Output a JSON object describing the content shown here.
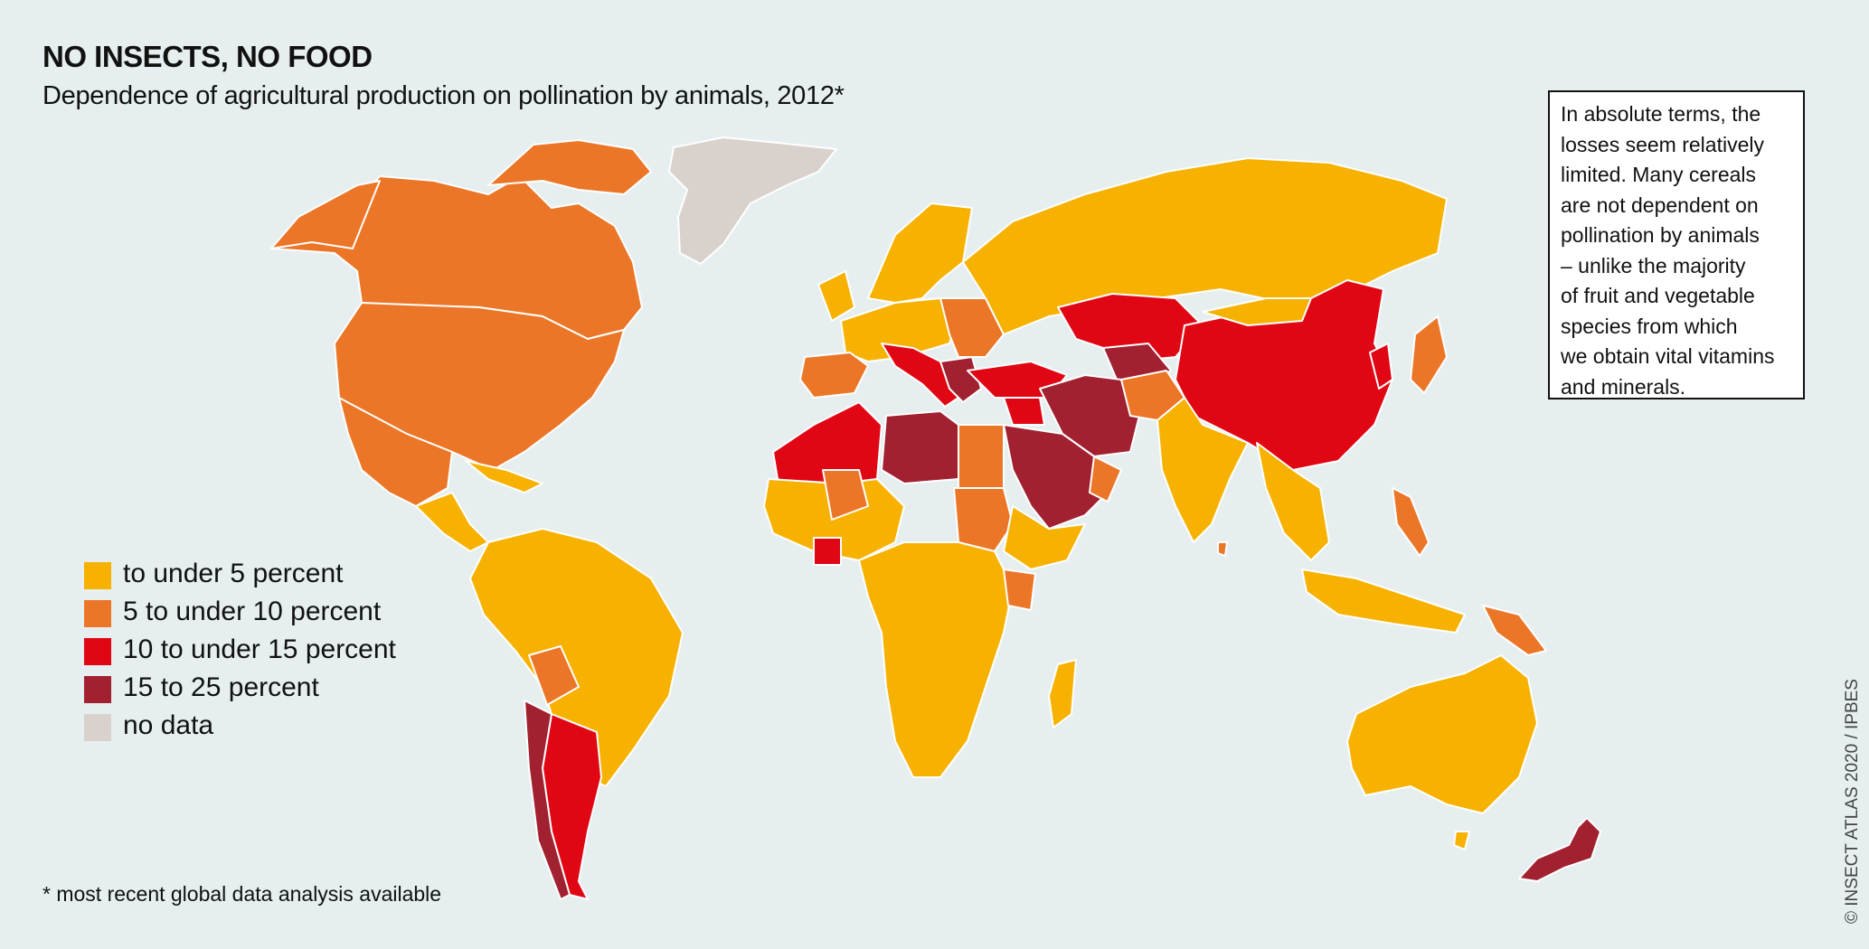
{
  "header": {
    "title": "NO INSECTS, NO FOOD",
    "subtitle": "Dependence of agricultural production on pollination by animals, 2012*"
  },
  "infobox": {
    "lines": [
      "In absolute terms, the",
      "losses seem relatively",
      "limited. Many cereals",
      "are not dependent on",
      "pollination by animals",
      "– unlike the majority",
      "of fruit and vegetable",
      "species from which",
      "we obtain vital vitamins",
      "and minerals."
    ]
  },
  "legend": {
    "items": [
      {
        "label": "to under 5 percent",
        "color": "#f7b100"
      },
      {
        "label": "5 to under 10 percent",
        "color": "#ec7627"
      },
      {
        "label": "10 to under 15 percent",
        "color": "#e10613"
      },
      {
        "label": "15 to 25 percent",
        "color": "#a22131"
      },
      {
        "label": "no data",
        "color": "#d9d2cc"
      }
    ]
  },
  "footnote": "* most recent global data analysis available",
  "credit": "© INSECT ATLAS 2020 / IPBES",
  "colors": {
    "background": "#e6eeef",
    "low": "#f7b100",
    "mid": "#ec7627",
    "high": "#e10613",
    "very_high": "#a22131",
    "no_data": "#d9d2cc",
    "border": "#ffffff"
  }
}
